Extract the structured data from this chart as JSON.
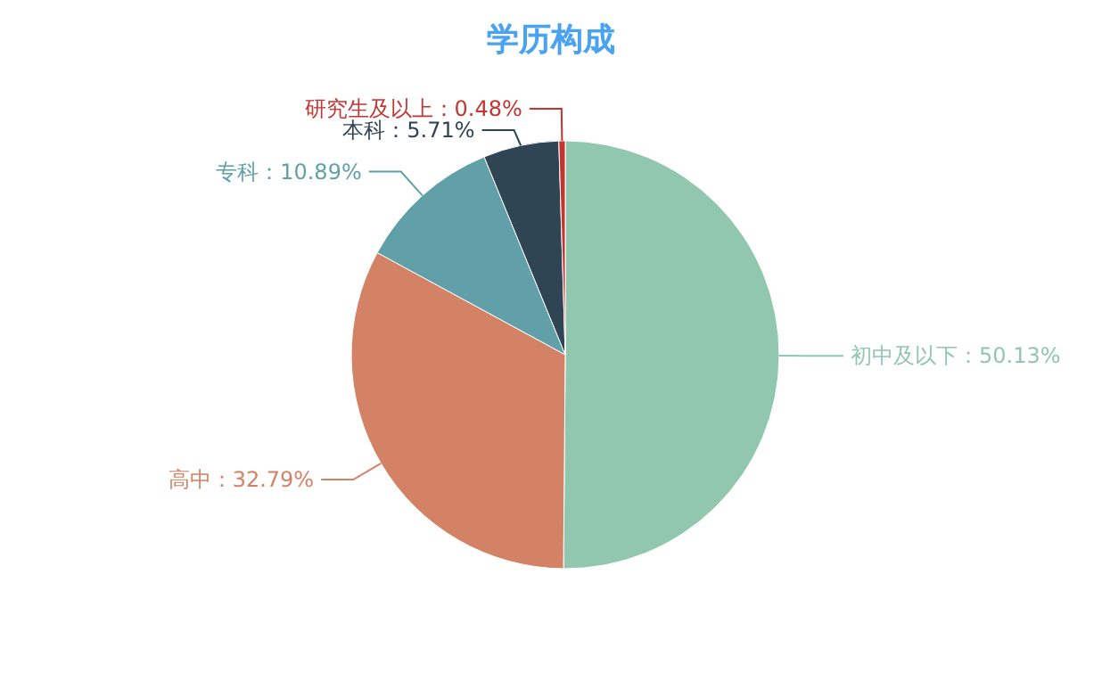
{
  "chart_data": {
    "type": "pie",
    "title": "学历构成",
    "categories": [
      "初中及以下",
      "高中",
      "专科",
      "本科",
      "研究生及以上"
    ],
    "values": [
      50.13,
      32.79,
      10.89,
      5.71,
      0.48
    ],
    "value_labels": [
      "：50.13%",
      "：32.79%",
      "：10.89%",
      "：5.71%",
      "：0.48%"
    ],
    "colors": [
      "#91c7ae",
      "#d48265",
      "#61a0a8",
      "#2f4554",
      "#c23531"
    ]
  }
}
